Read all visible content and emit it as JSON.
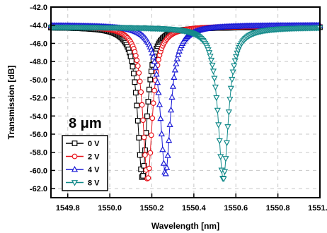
{
  "chart_data": {
    "type": "line",
    "xlabel": "Wavelength [nm]",
    "ylabel": "Transmission [dB]",
    "xlim": [
      1549.72,
      1551.0
    ],
    "ylim": [
      -63.0,
      -42.0
    ],
    "x_ticks": [
      1549.8,
      1550.0,
      1550.2,
      1550.4,
      1550.6,
      1550.8,
      1551.0
    ],
    "x_tick_labels": [
      "1549.8",
      "1550.0",
      "1550.2",
      "1550.4",
      "1550.6",
      "1550.8",
      "1551.0"
    ],
    "y_ticks": [
      -42,
      -44,
      -46,
      -48,
      -50,
      -52,
      -54,
      -56,
      -58,
      -60,
      -62
    ],
    "y_tick_labels": [
      "-42.0",
      "-44.0",
      "-46.0",
      "-48.0",
      "-50.0",
      "-52.0",
      "-54.0",
      "-56.0",
      "-58.0",
      "-60.0",
      "-62.0"
    ],
    "grid": true,
    "annotation": "8 μm",
    "legend_position": "bottom-left",
    "series": [
      {
        "name": "0 V",
        "color": "#000000",
        "marker": "square",
        "resonance": {
          "center": 1550.155,
          "baseline": -44.2,
          "depth": 16.6,
          "width": 0.055
        }
      },
      {
        "name": "2 V",
        "color": "#e8141c",
        "marker": "circle",
        "resonance": {
          "center": 1550.18,
          "baseline": -44.1,
          "depth": 16.9,
          "width": 0.055
        }
      },
      {
        "name": "4 V",
        "color": "#1a1ad6",
        "marker": "triangle-up",
        "resonance": {
          "center": 1550.265,
          "baseline": -44.0,
          "depth": 16.4,
          "width": 0.06
        }
      },
      {
        "name": "8 V",
        "color": "#138a8a",
        "marker": "triangle-down",
        "resonance": {
          "center": 1550.54,
          "baseline": -44.2,
          "depth": 16.8,
          "width": 0.06
        }
      }
    ]
  }
}
